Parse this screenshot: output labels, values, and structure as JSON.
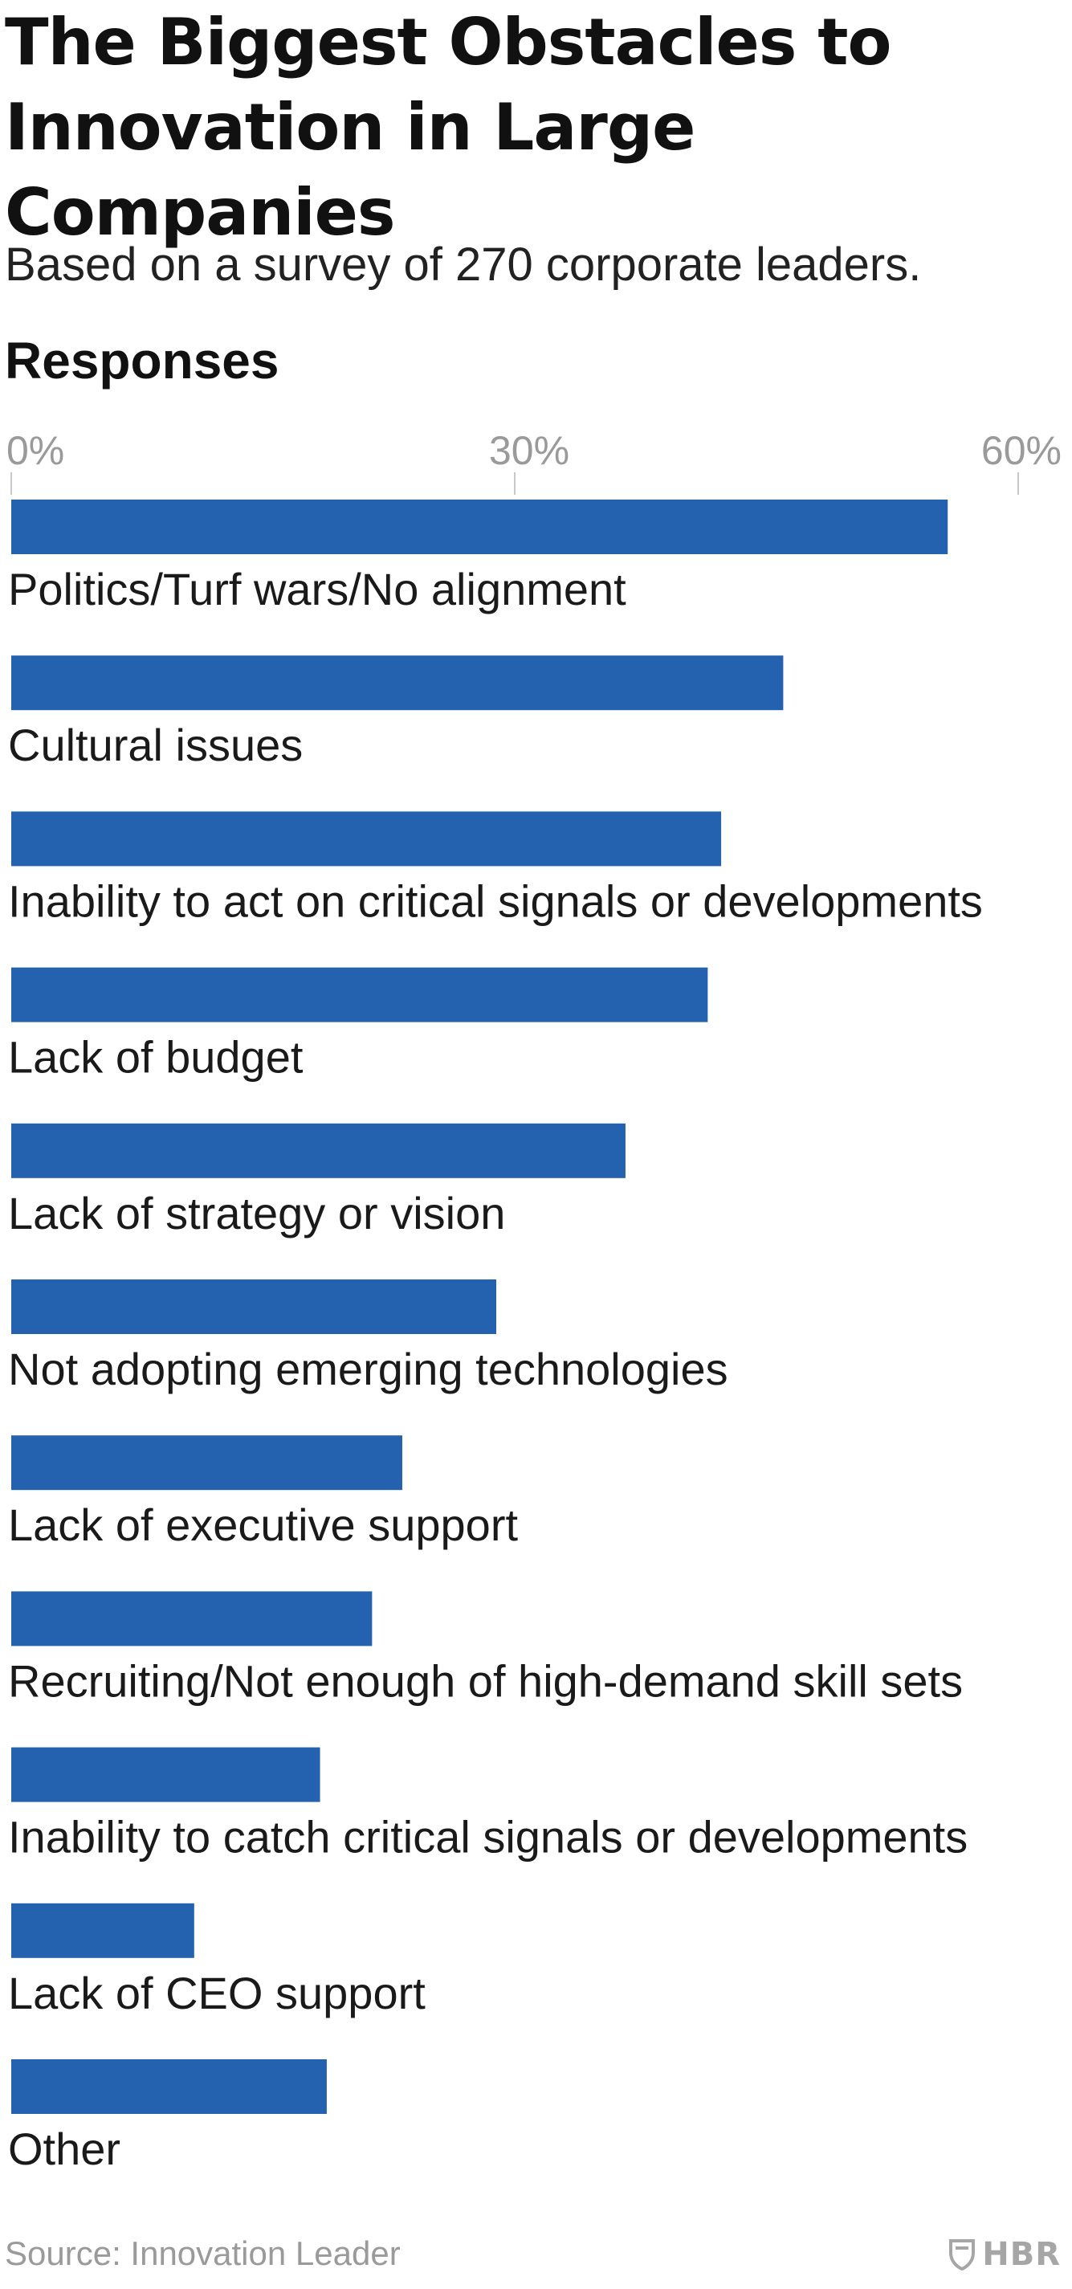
{
  "header": {
    "title": "The Biggest Obstacles to\nInnovation in Large Companies",
    "subtitle": "Based on a survey of 270 corporate leaders.",
    "section_label": "Responses"
  },
  "footer": {
    "source": "Source: Innovation Leader",
    "logo_text": "HBR"
  },
  "colors": {
    "bar": "#2461ae",
    "tick": "#9a9a9a",
    "grid": "#c8c8c8"
  },
  "chart_data": {
    "type": "bar",
    "orientation": "horizontal",
    "xlim": [
      0,
      60
    ],
    "ticks": [
      {
        "value": 0,
        "label": "0%"
      },
      {
        "value": 30,
        "label": "30%"
      },
      {
        "value": 60,
        "label": "60%"
      }
    ],
    "categories": [
      "Politics/Turf wars/No alignment",
      "Cultural issues",
      "Inability to act on critical signals or developments",
      "Lack of budget",
      "Lack of strategy or vision",
      "Not adopting emerging technologies",
      "Lack of executive support",
      "Recruiting/Not enough of high-demand skill sets",
      "Inability to catch critical signals or developments",
      "Lack of CEO support",
      "Other"
    ],
    "values": [
      55.8,
      46.0,
      42.3,
      41.5,
      36.6,
      28.9,
      23.3,
      21.5,
      18.4,
      10.9,
      18.8
    ],
    "grid": true,
    "legend": "none"
  }
}
